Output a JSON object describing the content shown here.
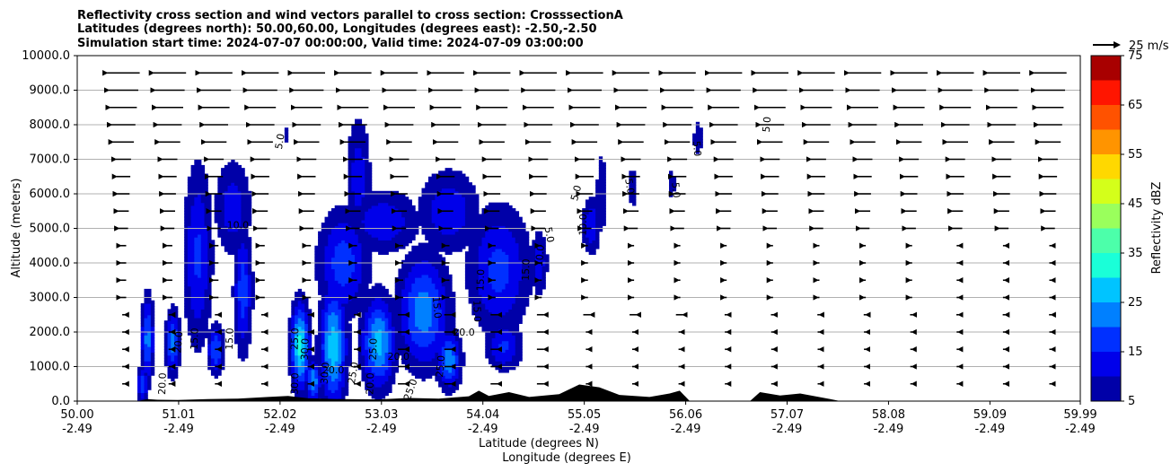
{
  "chart_data": {
    "type": "contour",
    "title_lines": [
      "Reflectivity cross section and wind vectors parallel to cross section: CrosssectionA",
      "Latitudes (degrees north): 50.00,60.00, Longitudes (degrees east): -2.50,-2.50",
      "Simulation start time: 2024-07-07 00:00:00, Valid time: 2024-07-09 03:00:00"
    ],
    "ylabel": "Altitude (meters)",
    "xlabel": "Latitude (degrees N)",
    "xlabel2": "Longitude (degrees E)",
    "ylim": [
      0,
      10000
    ],
    "yticks": [
      "0.0",
      "1000.0",
      "2000.0",
      "3000.0",
      "4000.0",
      "5000.0",
      "6000.0",
      "7000.0",
      "8000.0",
      "9000.0",
      "10000.0"
    ],
    "xlim": [
      50.0,
      59.99
    ],
    "xticks_lat": [
      "50.00",
      "51.01",
      "52.02",
      "53.03",
      "54.04",
      "55.05",
      "56.06",
      "57.07",
      "58.08",
      "59.09",
      "59.99"
    ],
    "xticks_lon": [
      "-2.49",
      "-2.49",
      "-2.49",
      "-2.49",
      "-2.49",
      "-2.49",
      "-2.49",
      "-2.49",
      "-2.49",
      "-2.49",
      "-2.49"
    ],
    "horizontal_grid": true,
    "quiver_key": "25 m/s",
    "colorbar": {
      "label": "Reflectivity dBZ",
      "ticks": [
        "5",
        "15",
        "25",
        "35",
        "45",
        "55",
        "65",
        "75"
      ],
      "levels": [
        5,
        10,
        15,
        20,
        25,
        30,
        35,
        40,
        45,
        50,
        55,
        60,
        65,
        70,
        75
      ],
      "colors": [
        "#0000a8",
        "#0000ea",
        "#0030ff",
        "#0080ff",
        "#00c4ff",
        "#1affd8",
        "#4cffaa",
        "#9aff5c",
        "#d4ff1a",
        "#ffd800",
        "#ff9400",
        "#ff5200",
        "#ff1500",
        "#a80000"
      ]
    },
    "contour_labels": [
      {
        "text": "5.0",
        "x": 52.05,
        "y": 7500,
        "rot": -80
      },
      {
        "text": "5.0",
        "x": 55.0,
        "y": 6000,
        "rot": -75
      },
      {
        "text": "5.0",
        "x": 55.47,
        "y": 6200,
        "rot": 80
      },
      {
        "text": "5.0",
        "x": 55.93,
        "y": 6100,
        "rot": 85
      },
      {
        "text": "5.0",
        "x": 56.14,
        "y": 7300,
        "rot": 85
      },
      {
        "text": "5.0",
        "x": 56.9,
        "y": 8000,
        "rot": -85
      },
      {
        "text": "5.0",
        "x": 54.67,
        "y": 4800,
        "rot": 80
      },
      {
        "text": "10.0",
        "x": 55.07,
        "y": 5100,
        "rot": -88
      },
      {
        "text": "10.0",
        "x": 54.64,
        "y": 4200,
        "rot": -85
      },
      {
        "text": "10.0",
        "x": 51.6,
        "y": 5000,
        "rot": 0
      },
      {
        "text": "15.0",
        "x": 54.5,
        "y": 3800,
        "rot": -88
      },
      {
        "text": "15.0",
        "x": 54.05,
        "y": 3500,
        "rot": -88
      },
      {
        "text": "15.0",
        "x": 51.2,
        "y": 1800,
        "rot": -88
      },
      {
        "text": "15.0",
        "x": 51.55,
        "y": 1800,
        "rot": -88
      },
      {
        "text": "15.0",
        "x": 53.55,
        "y": 2700,
        "rot": 85
      },
      {
        "text": "15.0",
        "x": 53.95,
        "y": 2600,
        "rot": 88
      },
      {
        "text": "20.0",
        "x": 53.2,
        "y": 1200,
        "rot": 0
      },
      {
        "text": "20.0",
        "x": 52.55,
        "y": 800,
        "rot": 0
      },
      {
        "text": "20.0",
        "x": 51.04,
        "y": 1700,
        "rot": -85
      },
      {
        "text": "20.0",
        "x": 50.88,
        "y": 500,
        "rot": -88
      },
      {
        "text": "20.0",
        "x": 53.85,
        "y": 1900,
        "rot": 0
      },
      {
        "text": "20.0",
        "x": 52.95,
        "y": 500,
        "rot": -88
      },
      {
        "text": "25.0",
        "x": 52.2,
        "y": 1800,
        "rot": -88
      },
      {
        "text": "25.0",
        "x": 52.78,
        "y": 800,
        "rot": -80
      },
      {
        "text": "25.0",
        "x": 52.98,
        "y": 1500,
        "rot": -88
      },
      {
        "text": "25.0",
        "x": 53.65,
        "y": 1000,
        "rot": -85
      },
      {
        "text": "30.0",
        "x": 52.3,
        "y": 1500,
        "rot": -88
      },
      {
        "text": "30.0",
        "x": 52.2,
        "y": 500,
        "rot": -88
      },
      {
        "text": "30.0",
        "x": 52.5,
        "y": 800,
        "rot": -85
      },
      {
        "text": "25.0",
        "x": 53.35,
        "y": 300,
        "rot": -70
      }
    ]
  }
}
